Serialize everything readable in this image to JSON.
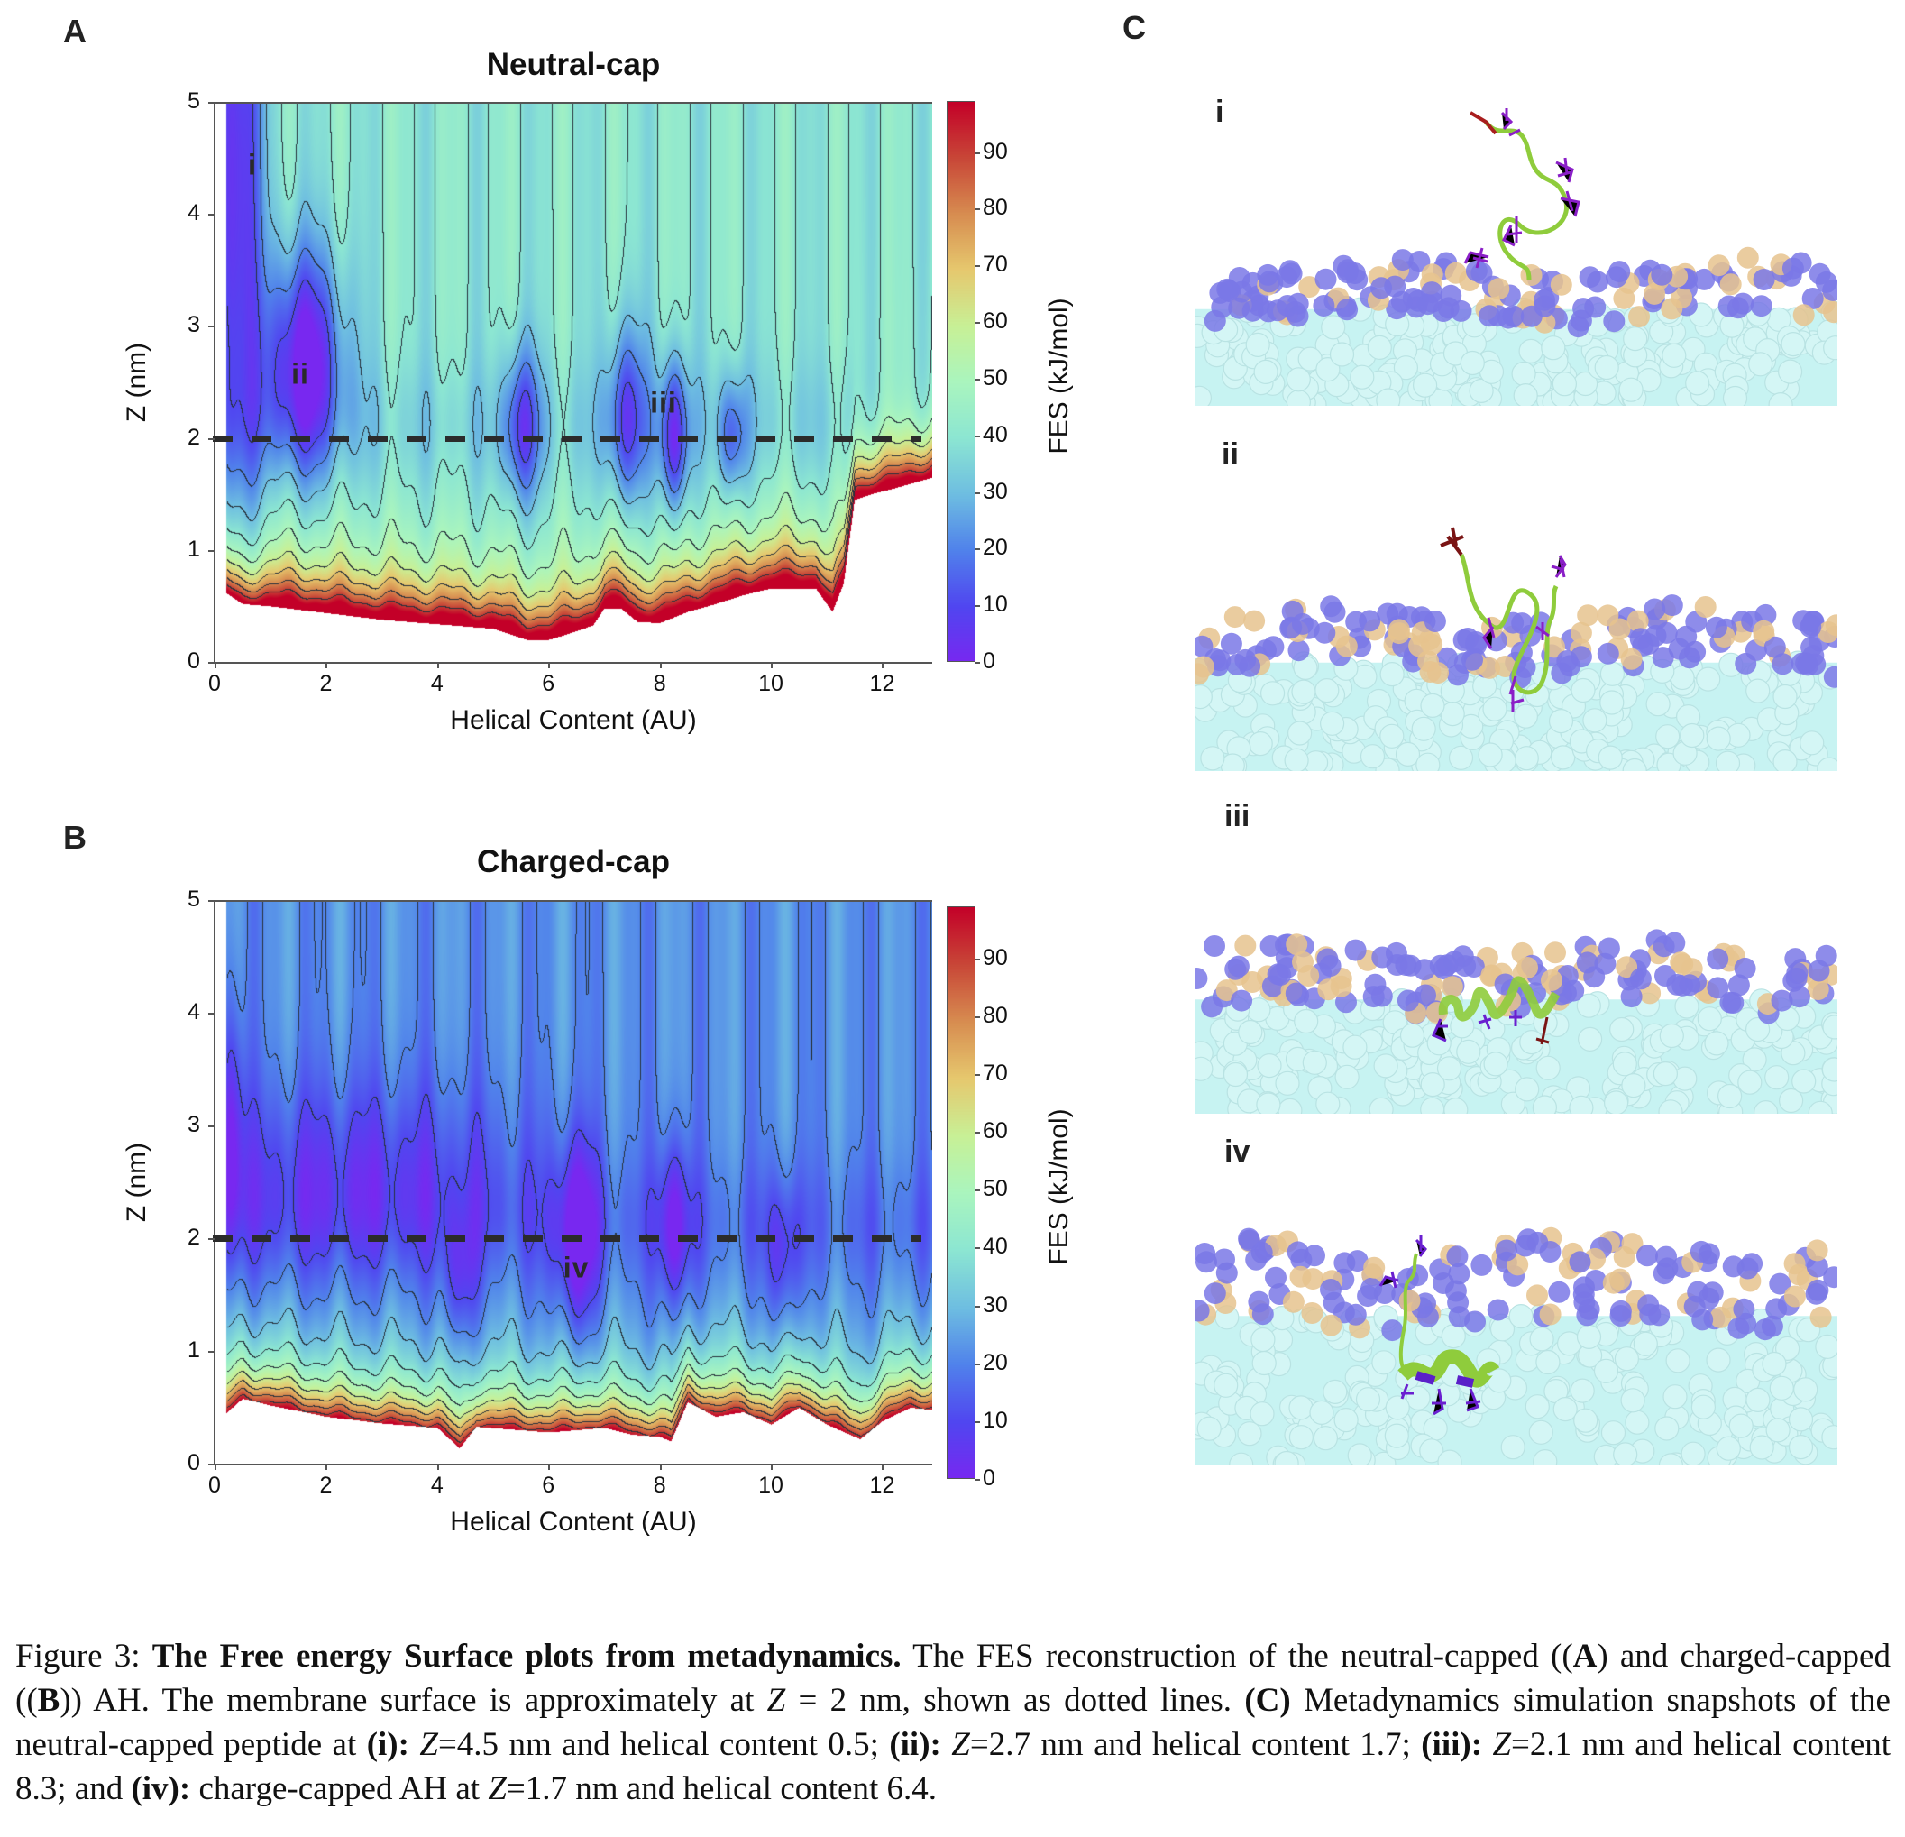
{
  "figure": {
    "panels": {
      "A": {
        "letter": "A",
        "title": "Neutral-cap"
      },
      "B": {
        "letter": "B",
        "title": "Charged-cap"
      },
      "C": {
        "letter": "C"
      }
    },
    "snapshots": [
      {
        "label": "i",
        "description": "Neutral-capped peptide above membrane (Z=4.5 nm, helical content 0.5)"
      },
      {
        "label": "ii",
        "description": "Neutral-capped peptide touching membrane (Z=2.7 nm, helical content 1.7)"
      },
      {
        "label": "iii",
        "description": "Neutral-capped peptide in headgroup region (Z=2.1 nm, helical content 8.3)"
      },
      {
        "label": "iv",
        "description": "Charge-capped AH inserted (Z=1.7 nm, helical content 6.4)"
      }
    ],
    "membrane_colors": {
      "headgroup_blue": "#7a78e6",
      "headgroup_tan": "#e6c38e",
      "tail_cyan": "#c7f3f2"
    },
    "peptide_colors": {
      "backbone": "#8fcc3c",
      "residue_purple": "#8a1fc7",
      "cap_red": "#a81e1e"
    }
  },
  "caption": {
    "prefix": "Figure 3: ",
    "bold_title": "The Free energy Surface plots from metadynamics.",
    "segments": [
      {
        "t": " The FES reconstruction of the neutral-capped ((",
        "s": "n"
      },
      {
        "t": "A",
        "s": "b"
      },
      {
        "t": ") and charged-capped ((",
        "s": "n"
      },
      {
        "t": "B",
        "s": "b"
      },
      {
        "t": ")) AH. The membrane surface is approximately at ",
        "s": "n"
      },
      {
        "t": "Z",
        "s": "i"
      },
      {
        "t": " = 2 nm, shown as dotted lines. ",
        "s": "n"
      },
      {
        "t": "(C)",
        "s": "b"
      },
      {
        "t": " Metadynamics simulation snapshots of the neutral-capped peptide at ",
        "s": "n"
      },
      {
        "t": "(i):",
        "s": "b"
      },
      {
        "t": " ",
        "s": "n"
      },
      {
        "t": "Z",
        "s": "i"
      },
      {
        "t": "=4.5 nm and helical content 0.5; ",
        "s": "n"
      },
      {
        "t": "(ii):",
        "s": "b"
      },
      {
        "t": " ",
        "s": "n"
      },
      {
        "t": "Z",
        "s": "i"
      },
      {
        "t": "=2.7 nm and helical content 1.7; ",
        "s": "n"
      },
      {
        "t": "(iii):",
        "s": "b"
      },
      {
        "t": " ",
        "s": "n"
      },
      {
        "t": "Z",
        "s": "i"
      },
      {
        "t": "=2.1 nm and helical content 8.3; and ",
        "s": "n"
      },
      {
        "t": "(iv):",
        "s": "b"
      },
      {
        "t": " charge-capped AH at ",
        "s": "n"
      },
      {
        "t": "Z",
        "s": "i"
      },
      {
        "t": "=1.7 nm and helical content 6.4.",
        "s": "n"
      }
    ]
  },
  "chart_data": [
    {
      "id": "A",
      "type": "heatmap",
      "title": "Neutral-cap",
      "xlabel": "Helical Content (AU)",
      "ylabel": "Z (nm)",
      "colorbar_label": "FES (kJ/mol)",
      "xlim": [
        0,
        12.9
      ],
      "ylim": [
        0,
        5
      ],
      "xticks": [
        0,
        2,
        4,
        6,
        8,
        10,
        12
      ],
      "yticks": [
        0,
        1,
        2,
        3,
        4,
        5
      ],
      "colorbar_range": [
        0,
        99
      ],
      "colorbar_ticks": [
        0,
        10,
        20,
        30,
        40,
        50,
        60,
        70,
        80,
        90
      ],
      "colormap": "rainbow (purple-blue-cyan-green-yellow-orange-red)",
      "contour_interval": 10,
      "reference_line": {
        "z": 2,
        "style": "dashed",
        "label": "membrane surface"
      },
      "grid": false,
      "plateau_fes": 40,
      "data_x_start": 0.2,
      "lower_boundary": [
        [
          0.2,
          0.62
        ],
        [
          0.5,
          0.52
        ],
        [
          1,
          0.5
        ],
        [
          2,
          0.44
        ],
        [
          3,
          0.38
        ],
        [
          4,
          0.34
        ],
        [
          5,
          0.3
        ],
        [
          5.6,
          0.2
        ],
        [
          6,
          0.2
        ],
        [
          6.4,
          0.26
        ],
        [
          6.8,
          0.33
        ],
        [
          7,
          0.48
        ],
        [
          7.3,
          0.48
        ],
        [
          7.6,
          0.36
        ],
        [
          8,
          0.35
        ],
        [
          8.5,
          0.45
        ],
        [
          9,
          0.52
        ],
        [
          9.5,
          0.6
        ],
        [
          10,
          0.66
        ],
        [
          10.8,
          0.66
        ],
        [
          11.1,
          0.45
        ],
        [
          11.3,
          0.7
        ],
        [
          11.5,
          1.45
        ],
        [
          11.8,
          1.5
        ],
        [
          12.2,
          1.55
        ],
        [
          12.9,
          1.65
        ]
      ],
      "basins": [
        {
          "x": 0.35,
          "z": 4.4,
          "fes": 8,
          "wx": 0.35,
          "wz": 2.5
        },
        {
          "x": 1.6,
          "z": 2.7,
          "fes": 3,
          "wx": 0.5,
          "wz": 0.7
        },
        {
          "x": 5.5,
          "z": 2.1,
          "fes": 18,
          "wx": 0.25,
          "wz": 0.5
        },
        {
          "x": 7.4,
          "z": 2.2,
          "fes": 16,
          "wx": 0.25,
          "wz": 0.6
        },
        {
          "x": 8.25,
          "z": 2.0,
          "fes": 10,
          "wx": 0.18,
          "wz": 0.5
        },
        {
          "x": 9.3,
          "z": 2.0,
          "fes": 22,
          "wx": 0.18,
          "wz": 0.4
        }
      ],
      "annotations": [
        {
          "label": "i",
          "x": 0.68,
          "z": 4.44
        },
        {
          "label": "ii",
          "x": 1.54,
          "z": 2.57
        },
        {
          "label": "iii",
          "x": 8.07,
          "z": 2.31
        }
      ]
    },
    {
      "id": "B",
      "type": "heatmap",
      "title": "Charged-cap",
      "xlabel": "Helical Content (AU)",
      "ylabel": "Z (nm)",
      "colorbar_label": "FES (kJ/mol)",
      "xlim": [
        0,
        12.9
      ],
      "ylim": [
        0,
        5
      ],
      "xticks": [
        0,
        2,
        4,
        6,
        8,
        10,
        12
      ],
      "yticks": [
        0,
        1,
        2,
        3,
        4,
        5
      ],
      "colorbar_range": [
        0,
        99
      ],
      "colorbar_ticks": [
        0,
        10,
        20,
        30,
        40,
        50,
        60,
        70,
        80,
        90
      ],
      "colormap": "rainbow (purple-blue-cyan-green-yellow-orange-red)",
      "contour_interval": 10,
      "reference_line": {
        "z": 2,
        "style": "dashed",
        "label": "membrane surface"
      },
      "grid": false,
      "plateau_fes": 22,
      "data_x_start": 0.2,
      "lower_boundary": [
        [
          0.2,
          0.45
        ],
        [
          0.5,
          0.58
        ],
        [
          1,
          0.52
        ],
        [
          2,
          0.42
        ],
        [
          3,
          0.36
        ],
        [
          4,
          0.32
        ],
        [
          4.4,
          0.14
        ],
        [
          4.7,
          0.33
        ],
        [
          5.5,
          0.3
        ],
        [
          6,
          0.28
        ],
        [
          6.5,
          0.3
        ],
        [
          7,
          0.32
        ],
        [
          7.5,
          0.26
        ],
        [
          8,
          0.24
        ],
        [
          8.2,
          0.2
        ],
        [
          8.5,
          0.55
        ],
        [
          9,
          0.42
        ],
        [
          9.5,
          0.46
        ],
        [
          10,
          0.35
        ],
        [
          10.5,
          0.5
        ],
        [
          11,
          0.35
        ],
        [
          11.6,
          0.22
        ],
        [
          12,
          0.38
        ],
        [
          12.5,
          0.5
        ],
        [
          12.9,
          0.48
        ]
      ],
      "basins": [
        {
          "x": 0.3,
          "z": 3.0,
          "fes": 10,
          "wx": 0.15,
          "wz": 0.8
        },
        {
          "x": 2.5,
          "z": 2.6,
          "fes": 14,
          "wx": 2.2,
          "wz": 0.6
        },
        {
          "x": 6.5,
          "z": 2.0,
          "fes": 4,
          "wx": 0.28,
          "wz": 0.6
        },
        {
          "x": 8.25,
          "z": 2.1,
          "fes": 6,
          "wx": 0.2,
          "wz": 0.55
        },
        {
          "x": 4.4,
          "z": 1.6,
          "fes": 14,
          "wx": 0.2,
          "wz": 0.4
        },
        {
          "x": 10.2,
          "z": 1.8,
          "fes": 13,
          "wx": 0.2,
          "wz": 0.5
        }
      ],
      "annotations": [
        {
          "label": "iv",
          "x": 6.5,
          "z": 1.74
        }
      ]
    }
  ]
}
